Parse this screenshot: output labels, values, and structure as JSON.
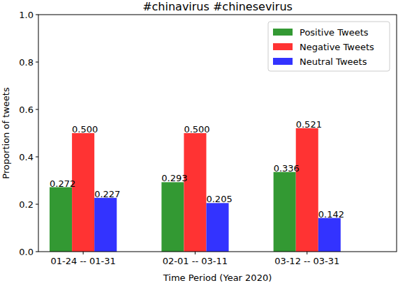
{
  "chart_data": {
    "type": "bar",
    "title": "#chinavirus #chinesevirus",
    "x_label": "Time Period (Year 2020)",
    "y_label": "Proportion of tweets",
    "categories": [
      "01-24 -- 01-31",
      "02-01 -- 03-11",
      "03-12 -- 03-31"
    ],
    "series": [
      {
        "name": "Positive Tweets",
        "color": "#339933",
        "values": [
          0.272,
          0.293,
          0.336
        ],
        "value_labels": [
          "0.272",
          "0.293",
          "0.336"
        ]
      },
      {
        "name": "Negative Tweets",
        "color": "#ff3333",
        "values": [
          0.5,
          0.5,
          0.521
        ],
        "value_labels": [
          "0.500",
          "0.500",
          "0.521"
        ]
      },
      {
        "name": "Neutral Tweets",
        "color": "#3333ff",
        "values": [
          0.227,
          0.205,
          0.142
        ],
        "value_labels": [
          "0.227",
          "0.205",
          "0.142"
        ]
      }
    ],
    "ylim": [
      0,
      1
    ],
    "yticks": [
      {
        "value": 0,
        "label": "0.0"
      },
      0.2,
      0.4,
      0.6,
      0.8,
      {
        "value": 1,
        "label": "1.0"
      }
    ],
    "legend": "upper right",
    "data_labels": true,
    "grid": false
  }
}
